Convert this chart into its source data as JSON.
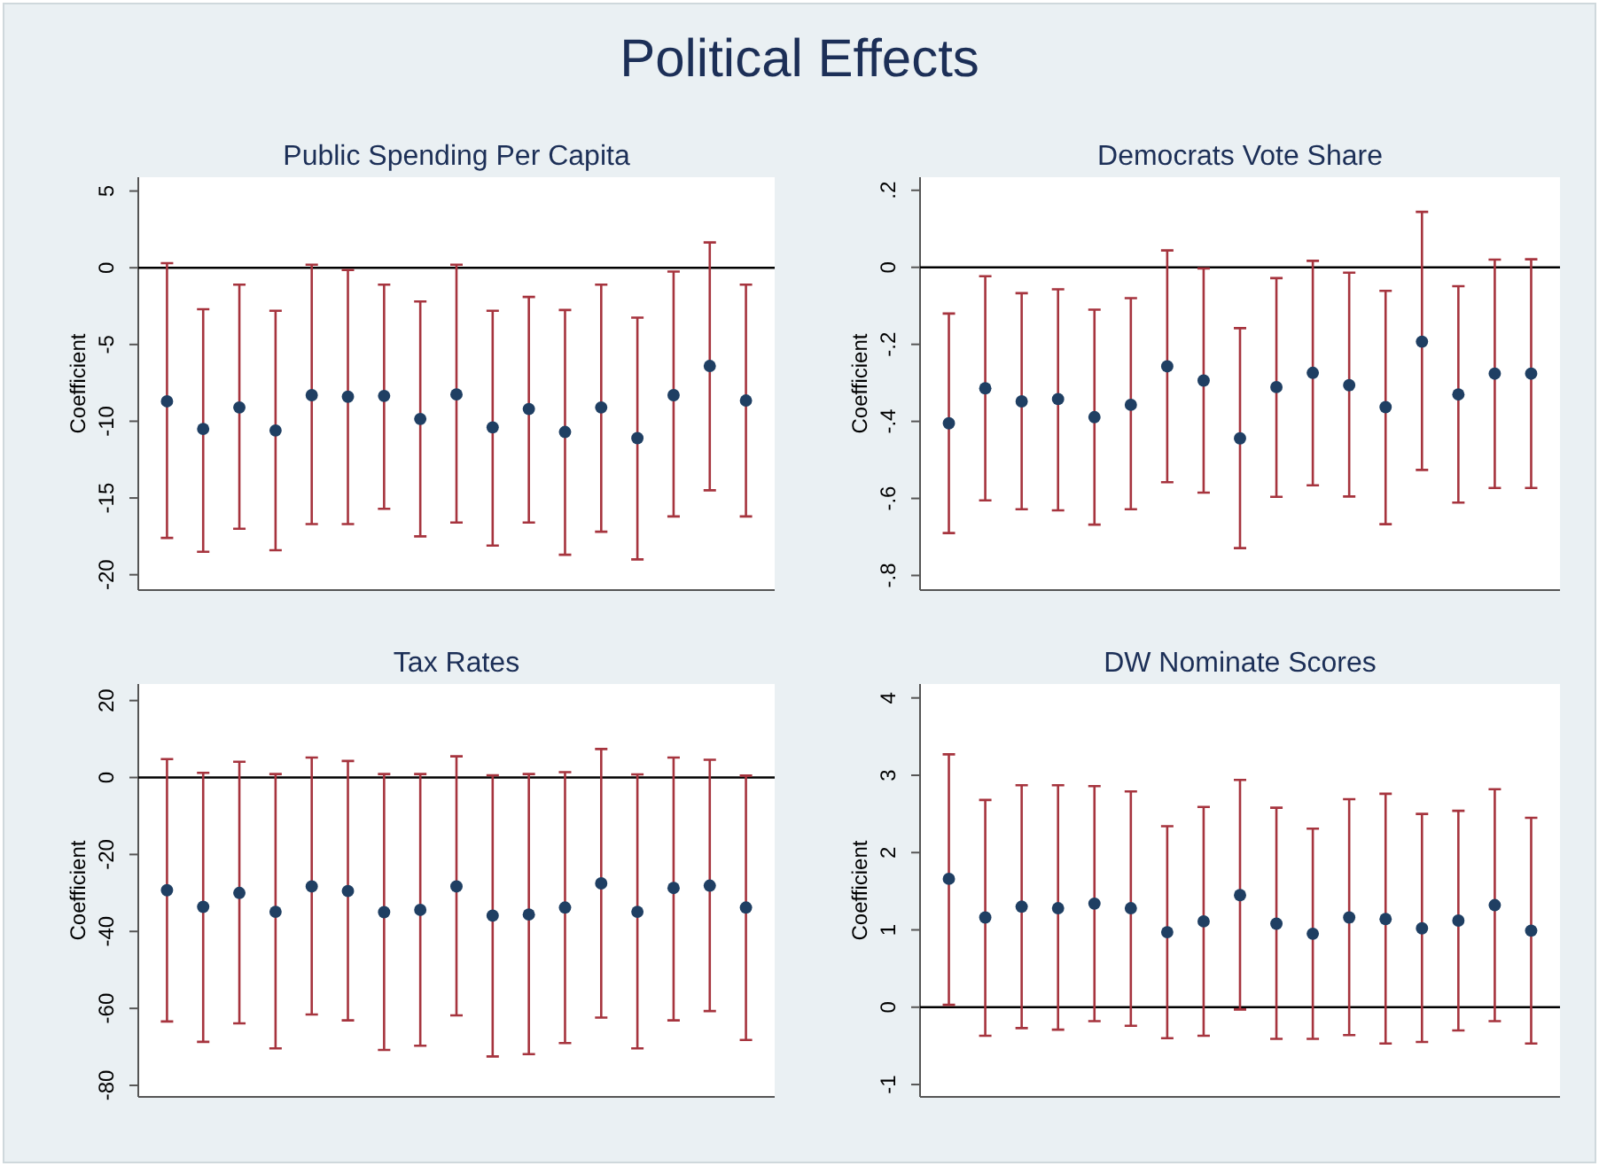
{
  "chart_data": [
    {
      "type": "scatter",
      "title": "Public Spending Per Capita",
      "ylabel": "Coefficient",
      "annotations": [
        "Political Effects"
      ],
      "categories": [
        null,
        null,
        null,
        null,
        null,
        null,
        null,
        null,
        null,
        null,
        null,
        null,
        null,
        null,
        null,
        null,
        null
      ],
      "ylim": [
        -21,
        5.9
      ],
      "yticks": [
        {
          "value": -20,
          "label": "-20"
        },
        {
          "value": -15,
          "label": "-15"
        },
        {
          "value": -10,
          "label": "-10"
        },
        {
          "value": -5,
          "label": "-5"
        },
        0,
        5
      ],
      "tick_labels": "y",
      "marker": "circle",
      "ref_lines": [
        {
          "axis": "y",
          "value": 0,
          "color": "#000000"
        }
      ],
      "series": [
        {
          "color": "#1f3f63",
          "values": [
            -8.7,
            -10.5,
            -9.1,
            -10.6,
            -8.3,
            -8.4,
            -8.35,
            -9.85,
            -8.25,
            -10.4,
            -9.2,
            -10.7,
            -9.1,
            -11.1,
            -8.3,
            -6.4,
            -8.65
          ],
          "errors": [
            [
              -17.6,
              0.3
            ],
            [
              -18.5,
              -2.7
            ],
            [
              -17.0,
              -1.1
            ],
            [
              -18.4,
              -2.8
            ],
            [
              -16.7,
              0.2
            ],
            [
              -16.7,
              -0.15
            ],
            [
              -15.7,
              -1.1
            ],
            [
              -17.5,
              -2.2
            ],
            [
              -16.6,
              0.2
            ],
            [
              -18.1,
              -2.8
            ],
            [
              -16.6,
              -1.9
            ],
            [
              -18.7,
              -2.75
            ],
            [
              -17.2,
              -1.1
            ],
            [
              -19.0,
              -3.25
            ],
            [
              -16.2,
              -0.25
            ],
            [
              -14.5,
              1.65
            ],
            [
              -16.2,
              -1.1
            ]
          ]
        }
      ]
    },
    {
      "type": "scatter",
      "title": "Democrats Vote Share",
      "ylabel": "Coefficient",
      "categories": [
        null,
        null,
        null,
        null,
        null,
        null,
        null,
        null,
        null,
        null,
        null,
        null,
        null,
        null,
        null,
        null,
        null
      ],
      "ylim": [
        -0.838,
        0.234
      ],
      "yticks": [
        {
          "value": -0.8,
          "label": "-.8"
        },
        {
          "value": -0.6,
          "label": "-.6"
        },
        {
          "value": -0.4,
          "label": "-.4"
        },
        {
          "value": -0.2,
          "label": "-.2"
        },
        0,
        {
          "value": 0.2,
          "label": ".2"
        }
      ],
      "tick_labels": "y",
      "marker": "circle",
      "ref_lines": [
        {
          "axis": "y",
          "value": 0,
          "color": "#000000"
        }
      ],
      "series": [
        {
          "color": "#1f3f63",
          "values": [
            -0.405,
            -0.314,
            -0.348,
            -0.342,
            -0.389,
            -0.357,
            -0.257,
            -0.294,
            -0.444,
            -0.311,
            -0.274,
            -0.306,
            -0.363,
            -0.193,
            -0.33,
            -0.276,
            -0.276
          ],
          "errors": [
            [
              -0.69,
              -0.12
            ],
            [
              -0.605,
              -0.023
            ],
            [
              -0.628,
              -0.067
            ],
            [
              -0.631,
              -0.057
            ],
            [
              -0.668,
              -0.11
            ],
            [
              -0.628,
              -0.08
            ],
            [
              -0.558,
              0.044
            ],
            [
              -0.585,
              -0.003
            ],
            [
              -0.729,
              -0.158
            ],
            [
              -0.596,
              -0.028
            ],
            [
              -0.566,
              0.017
            ],
            [
              -0.595,
              -0.014
            ],
            [
              -0.667,
              -0.061
            ],
            [
              -0.526,
              0.144
            ],
            [
              -0.611,
              -0.049
            ],
            [
              -0.573,
              0.02
            ],
            [
              -0.573,
              0.021
            ]
          ]
        }
      ]
    },
    {
      "type": "scatter",
      "title": "Tax Rates",
      "ylabel": "Coefficient",
      "categories": [
        null,
        null,
        null,
        null,
        null,
        null,
        null,
        null,
        null,
        null,
        null,
        null,
        null,
        null,
        null,
        null,
        null
      ],
      "ylim": [
        -83,
        24.3
      ],
      "yticks": [
        {
          "value": -80,
          "label": "-80"
        },
        {
          "value": -60,
          "label": "-60"
        },
        {
          "value": -40,
          "label": "-40"
        },
        {
          "value": -20,
          "label": "-20"
        },
        0,
        20
      ],
      "tick_labels": "y",
      "marker": "circle",
      "ref_lines": [
        {
          "axis": "y",
          "value": 0,
          "color": "#000000"
        }
      ],
      "series": [
        {
          "color": "#1f3f63",
          "values": [
            -29.3,
            -33.6,
            -30.0,
            -34.9,
            -28.3,
            -29.5,
            -35.0,
            -34.4,
            -28.3,
            -35.9,
            -35.6,
            -33.8,
            -27.5,
            -34.9,
            -28.7,
            -28.1,
            -33.8
          ],
          "errors": [
            [
              -63.4,
              4.8
            ],
            [
              -68.7,
              1.2
            ],
            [
              -63.9,
              4.1
            ],
            [
              -70.4,
              0.9
            ],
            [
              -61.6,
              5.2
            ],
            [
              -63.1,
              4.3
            ],
            [
              -70.8,
              0.9
            ],
            [
              -69.7,
              0.9
            ],
            [
              -61.8,
              5.5
            ],
            [
              -72.5,
              0.6
            ],
            [
              -71.9,
              0.9
            ],
            [
              -69.0,
              1.4
            ],
            [
              -62.4,
              7.4
            ],
            [
              -70.4,
              0.8
            ],
            [
              -63.1,
              5.2
            ],
            [
              -60.7,
              4.6
            ],
            [
              -68.2,
              0.5
            ]
          ]
        }
      ]
    },
    {
      "type": "scatter",
      "title": "DW Nominate Scores",
      "ylabel": "Coefficient",
      "categories": [
        null,
        null,
        null,
        null,
        null,
        null,
        null,
        null,
        null,
        null,
        null,
        null,
        null,
        null,
        null,
        null,
        null
      ],
      "ylim": [
        -1.16,
        4.18
      ],
      "yticks": [
        {
          "value": -1,
          "label": "-1"
        },
        0,
        1,
        2,
        3,
        4
      ],
      "tick_labels": "y",
      "marker": "circle",
      "ref_lines": [
        {
          "axis": "y",
          "value": 0,
          "color": "#000000"
        }
      ],
      "series": [
        {
          "color": "#1f3f63",
          "values": [
            1.66,
            1.16,
            1.3,
            1.28,
            1.34,
            1.28,
            0.97,
            1.11,
            1.45,
            1.08,
            0.95,
            1.16,
            1.14,
            1.02,
            1.12,
            1.32,
            0.99
          ],
          "errors": [
            [
              0.03,
              3.27
            ],
            [
              -0.37,
              2.68
            ],
            [
              -0.27,
              2.87
            ],
            [
              -0.29,
              2.87
            ],
            [
              -0.18,
              2.86
            ],
            [
              -0.24,
              2.79
            ],
            [
              -0.4,
              2.34
            ],
            [
              -0.37,
              2.59
            ],
            [
              -0.03,
              2.94
            ],
            [
              -0.41,
              2.58
            ],
            [
              -0.41,
              2.31
            ],
            [
              -0.36,
              2.69
            ],
            [
              -0.47,
              2.76
            ],
            [
              -0.45,
              2.5
            ],
            [
              -0.3,
              2.54
            ],
            [
              -0.18,
              2.82
            ],
            [
              -0.47,
              2.45
            ]
          ]
        }
      ]
    }
  ]
}
